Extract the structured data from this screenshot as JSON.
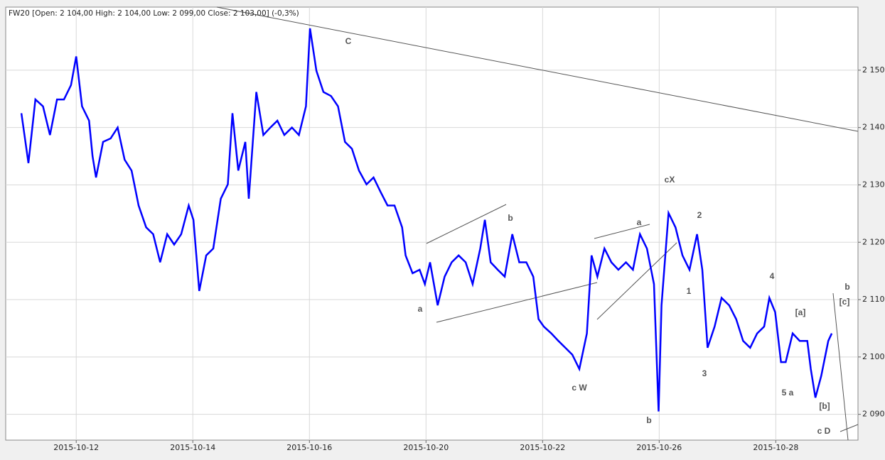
{
  "chart_data": {
    "type": "line",
    "title": "FW20 [Open: 2 104,00  High: 2 104,00  Low: 2 099,00  Close: 2 103,00] (-0,3%)",
    "color": "#0000ff",
    "grid": true,
    "xlim": [
      -1.21,
      13.41
    ],
    "ylim": [
      2085.5,
      2161
    ],
    "xticks": [
      {
        "value": 0,
        "label": "2015-10-12"
      },
      {
        "value": 2,
        "label": "2015-10-14"
      },
      {
        "value": 4,
        "label": "2015-10-16"
      },
      {
        "value": 6,
        "label": "2015-10-20"
      },
      {
        "value": 8,
        "label": "2015-10-22"
      },
      {
        "value": 10,
        "label": "2015-10-26"
      },
      {
        "value": 12,
        "label": "2015-10-28"
      }
    ],
    "yticks": [
      {
        "value": 2090,
        "label": "2 090,0"
      },
      {
        "value": 2100,
        "label": "2 100,0"
      },
      {
        "value": 2110,
        "label": "2 110,0"
      },
      {
        "value": 2120,
        "label": "2 120,0"
      },
      {
        "value": 2130,
        "label": "2 130,0"
      },
      {
        "value": 2140,
        "label": "2 140,0"
      },
      {
        "value": 2150,
        "label": "2 150,0"
      }
    ],
    "x": [
      -0.94,
      -0.82,
      -0.7,
      -0.57,
      -0.45,
      -0.33,
      -0.21,
      -0.09,
      0,
      0.1,
      0.22,
      0.28,
      0.34,
      0.46,
      0.59,
      0.71,
      0.83,
      0.95,
      1.07,
      1.2,
      1.32,
      1.44,
      1.56,
      1.68,
      1.8,
      1.93,
      2.01,
      2.11,
      2.23,
      2.35,
      2.48,
      2.6,
      2.68,
      2.78,
      2.9,
      2.96,
      3.09,
      3.21,
      3.33,
      3.45,
      3.57,
      3.7,
      3.82,
      3.94,
      4.01,
      4.12,
      4.24,
      4.37,
      4.49,
      4.61,
      4.73,
      4.85,
      4.98,
      5.1,
      5.22,
      5.34,
      5.46,
      5.59,
      5.65,
      5.77,
      5.89,
      5.98,
      6.07,
      6.2,
      6.32,
      6.44,
      6.56,
      6.68,
      6.8,
      6.93,
      7.01,
      7.11,
      7.23,
      7.35,
      7.48,
      7.6,
      7.72,
      7.84,
      7.93,
      8.02,
      8.15,
      8.27,
      8.39,
      8.51,
      8.63,
      8.76,
      8.84,
      8.94,
      9.06,
      9.18,
      9.3,
      9.43,
      9.55,
      9.67,
      9.79,
      9.91,
      9.99,
      10.04,
      10.16,
      10.28,
      10.4,
      10.52,
      10.65,
      10.74,
      10.83,
      10.95,
      11.07,
      11.2,
      11.32,
      11.44,
      11.56,
      11.68,
      11.8,
      11.89,
      11.99,
      12.09,
      12.17,
      12.29,
      12.41,
      12.54,
      12.6,
      12.68,
      12.78,
      12.9,
      12.96
    ],
    "values": [
      2142.5,
      2133.8,
      2144.9,
      2143.7,
      2138.7,
      2144.9,
      2144.9,
      2147.4,
      2152.4,
      2143.7,
      2141.2,
      2135,
      2131.3,
      2137.5,
      2138.1,
      2140,
      2134.4,
      2132.5,
      2126.4,
      2122.6,
      2121.4,
      2116.5,
      2121.4,
      2119.6,
      2121.4,
      2126.4,
      2123.9,
      2111.5,
      2117.7,
      2118.9,
      2127.6,
      2130.1,
      2142.5,
      2132.5,
      2137.5,
      2127.6,
      2146.2,
      2138.7,
      2140,
      2141.2,
      2138.7,
      2140,
      2138.7,
      2143.7,
      2157.3,
      2149.9,
      2146.2,
      2145.5,
      2143.7,
      2137.5,
      2136.3,
      2132.5,
      2130.1,
      2131.3,
      2128.8,
      2126.4,
      2126.4,
      2122.6,
      2117.7,
      2114.6,
      2115.2,
      2112.7,
      2116.5,
      2109,
      2114,
      2116.5,
      2117.7,
      2116.5,
      2112.7,
      2118.9,
      2123.9,
      2116.5,
      2115.2,
      2114,
      2121.4,
      2116.5,
      2116.5,
      2114,
      2106.6,
      2105.3,
      2104.1,
      2102.8,
      2101.6,
      2100.4,
      2097.9,
      2104.1,
      2117.7,
      2114,
      2118.9,
      2116.5,
      2115.2,
      2116.5,
      2115.2,
      2121.4,
      2118.9,
      2112.7,
      2090.5,
      2109,
      2125.1,
      2122.6,
      2117.7,
      2115.2,
      2121.4,
      2115.2,
      2101.6,
      2105.3,
      2110.3,
      2109,
      2106.6,
      2102.8,
      2101.6,
      2104.1,
      2105.3,
      2110.3,
      2107.8,
      2099.1,
      2099.1,
      2104.1,
      2102.8,
      2102.8,
      2097.9,
      2092.9,
      2096.7,
      2102.8,
      2104.1
    ],
    "annotations": [
      "C",
      "a",
      "b",
      "a",
      "c W",
      "cX",
      "2",
      "1",
      "3",
      "4",
      "[a]",
      "5 a",
      "[b]",
      "b",
      "b",
      "[c]",
      "c D"
    ]
  }
}
